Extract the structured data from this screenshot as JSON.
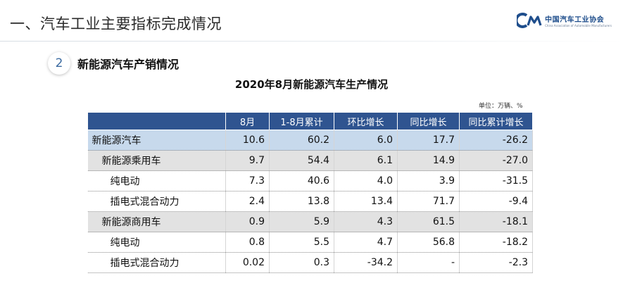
{
  "page": {
    "title": "一、汽车工业主要指标完成情况",
    "logo_cn": "中国汽车工业协会",
    "logo_en": "China Association of Automobile Manufacturers"
  },
  "section": {
    "number": "2",
    "title": "新能源汽车产销情况"
  },
  "table": {
    "title": "2020年8月新能源汽车生产情况",
    "unit": "单位：万辆、%",
    "headers": [
      "",
      "8月",
      "1-8月累计",
      "环比增长",
      "同比增长",
      "同比累计增长"
    ],
    "rows": [
      {
        "name": "新能源汽车",
        "level": 0,
        "values": [
          "10.6",
          "60.2",
          "6.0",
          "17.7",
          "-26.2"
        ]
      },
      {
        "name": "新能源乘用车",
        "level": 1,
        "values": [
          "9.7",
          "54.4",
          "6.1",
          "14.9",
          "-27.0"
        ]
      },
      {
        "name": "纯电动",
        "level": 2,
        "values": [
          "7.3",
          "40.6",
          "4.0",
          "3.9",
          "-31.5"
        ]
      },
      {
        "name": "插电式混合动力",
        "level": 2,
        "values": [
          "2.4",
          "13.8",
          "13.4",
          "71.7",
          "-9.4"
        ]
      },
      {
        "name": "新能源商用车",
        "level": 1,
        "values": [
          "0.9",
          "5.9",
          "4.3",
          "61.5",
          "-18.1"
        ]
      },
      {
        "name": "纯电动",
        "level": 2,
        "values": [
          "0.8",
          "5.5",
          "4.7",
          "56.8",
          "-18.2"
        ]
      },
      {
        "name": "插电式混合动力",
        "level": 2,
        "values": [
          "0.02",
          "0.3",
          "-34.2",
          "-",
          "-2.3"
        ]
      }
    ]
  },
  "colors": {
    "header_bg": "#2f5490",
    "level0_bg": "#c7d9ec",
    "level1_bg": "#e2e2e2",
    "accent": "#1f4e8c"
  }
}
